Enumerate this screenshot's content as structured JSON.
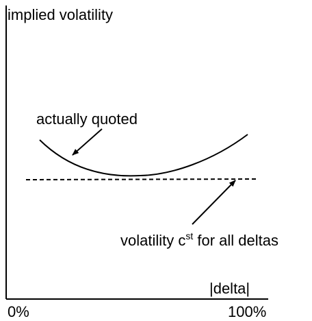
{
  "diagram": {
    "y_axis_label": "implied volatility",
    "x_axis_label": "|delta|",
    "x_tick_min": "0%",
    "x_tick_max": "100%",
    "quoted_curve_label": "actually quoted",
    "constant_line_label_prefix": "volatility c",
    "constant_line_label_sup": "st",
    "constant_line_label_suffix": " for all deltas",
    "colors": {
      "line": "#000000",
      "background": "#ffffff"
    }
  }
}
